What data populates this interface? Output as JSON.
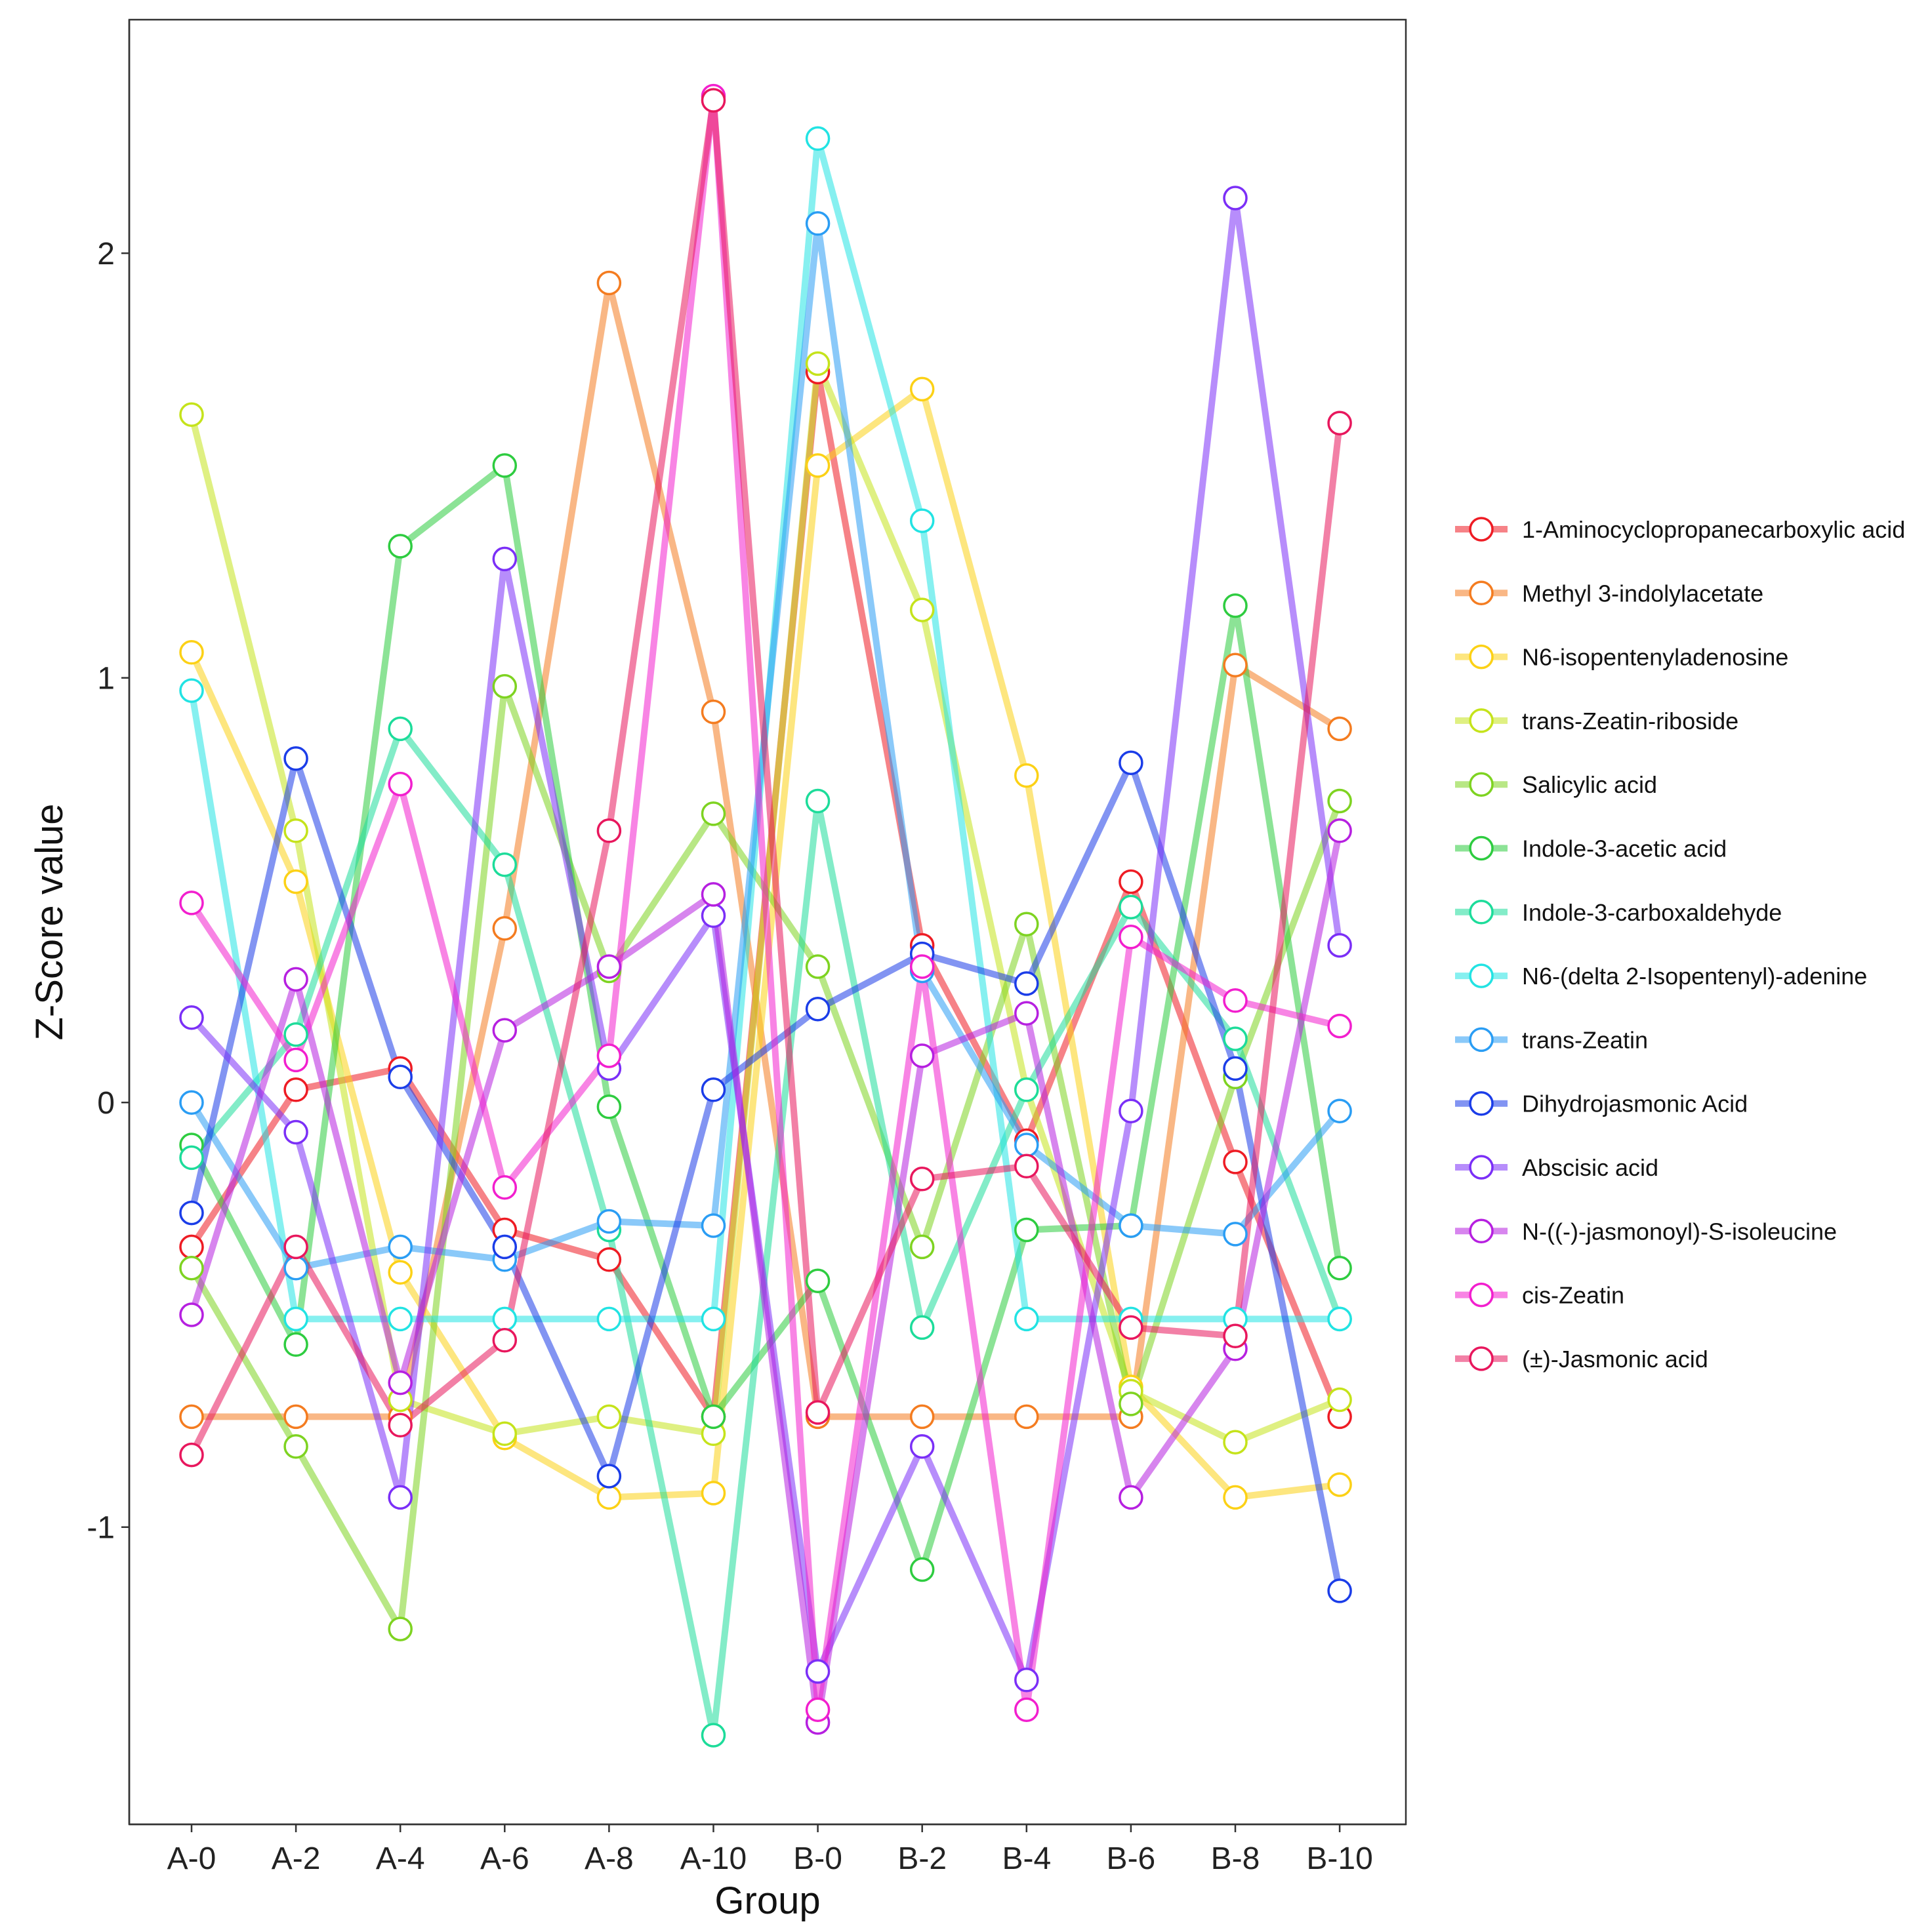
{
  "chart_data": {
    "type": "line",
    "title": "",
    "xlabel": "Group",
    "ylabel": "Z-Score value",
    "ylim": [
      -1.7,
      2.55
    ],
    "yticks": [
      -1,
      0,
      1,
      2
    ],
    "ytick_labels": [
      "-1",
      "0",
      "1",
      "2"
    ],
    "categories": [
      "A-0",
      "A-2",
      "A-4",
      "A-6",
      "A-8",
      "A-10",
      "B-0",
      "B-2",
      "B-4",
      "B-6",
      "B-8",
      "B-10"
    ],
    "legend_position": "right",
    "series": [
      {
        "name": "1-Aminocyclopropanecarboxylic acid",
        "color": "#ee1c24",
        "values": [
          -0.34,
          0.03,
          0.08,
          -0.3,
          -0.37,
          -0.74,
          1.72,
          0.37,
          -0.09,
          0.52,
          -0.14,
          -0.74
        ]
      },
      {
        "name": "Methyl 3-indolylacetate",
        "color": "#f47c20",
        "values": [
          -0.74,
          -0.74,
          -0.74,
          0.41,
          1.93,
          0.92,
          -0.74,
          -0.74,
          -0.74,
          -0.74,
          1.03,
          0.88
        ]
      },
      {
        "name": "N6-isopentenyladenosine",
        "color": "#fcd116",
        "values": [
          1.06,
          0.52,
          -0.4,
          -0.79,
          -0.93,
          -0.92,
          1.5,
          1.68,
          0.77,
          -0.67,
          -0.93,
          -0.9
        ]
      },
      {
        "name": "trans-Zeatin-riboside",
        "color": "#c5e31b",
        "values": [
          1.62,
          0.64,
          -0.7,
          -0.78,
          -0.74,
          -0.78,
          1.74,
          1.16,
          0.03,
          -0.68,
          -0.8,
          -0.7
        ]
      },
      {
        "name": "Salicylic acid",
        "color": "#7ed321",
        "values": [
          -0.39,
          -0.81,
          -1.24,
          0.98,
          0.31,
          0.68,
          0.32,
          -0.34,
          0.42,
          -0.71,
          0.06,
          0.71
        ]
      },
      {
        "name": "Indole-3-acetic acid",
        "color": "#2ecc40",
        "values": [
          -0.1,
          -0.57,
          1.31,
          1.5,
          -0.01,
          -0.74,
          -0.42,
          -1.1,
          -0.3,
          -0.29,
          1.17,
          -0.39
        ]
      },
      {
        "name": "Indole-3-carboxaldehyde",
        "color": "#1ddc9a",
        "values": [
          -0.13,
          0.16,
          0.88,
          0.56,
          -0.3,
          -1.49,
          0.71,
          -0.53,
          0.03,
          0.46,
          0.15,
          -0.51
        ]
      },
      {
        "name": "N6-(delta 2-Isopentenyl)-adenine",
        "color": "#22e3e3",
        "values": [
          0.97,
          -0.51,
          -0.51,
          -0.51,
          -0.51,
          -0.51,
          2.27,
          1.37,
          -0.51,
          -0.51,
          -0.51,
          -0.51
        ]
      },
      {
        "name": " trans-Zeatin",
        "color": "#2a9df4",
        "values": [
          0.0,
          -0.39,
          -0.34,
          -0.37,
          -0.28,
          -0.29,
          2.07,
          0.31,
          -0.1,
          -0.29,
          -0.31,
          -0.02
        ]
      },
      {
        "name": "Dihydrojasmonic Acid",
        "color": "#1b3de8",
        "values": [
          -0.26,
          0.81,
          0.06,
          -0.34,
          -0.88,
          0.03,
          0.22,
          0.35,
          0.28,
          0.8,
          0.08,
          -1.15
        ]
      },
      {
        "name": "Abscisic acid",
        "color": "#7b2ff7",
        "values": [
          0.2,
          -0.07,
          -0.93,
          1.28,
          0.08,
          0.44,
          -1.34,
          -0.81,
          -1.36,
          -0.02,
          2.13,
          0.37
        ]
      },
      {
        "name": "N-((-)-jasmonoyl)-S-isoleucine",
        "color": "#b620e0",
        "values": [
          -0.5,
          0.29,
          -0.66,
          0.17,
          0.32,
          0.49,
          -1.46,
          0.11,
          0.21,
          -0.93,
          -0.58,
          0.64
        ]
      },
      {
        "name": "cis-Zeatin",
        "color": "#f21fce",
        "values": [
          0.47,
          0.1,
          0.75,
          -0.2,
          0.11,
          2.37,
          -1.43,
          0.32,
          -1.43,
          0.39,
          0.24,
          0.18
        ]
      },
      {
        "name": "(±)-Jasmonic acid",
        "color": "#e8175d",
        "values": [
          -0.83,
          -0.34,
          -0.76,
          -0.56,
          0.64,
          2.36,
          -0.73,
          -0.18,
          -0.15,
          -0.53,
          -0.55,
          1.6
        ]
      }
    ]
  }
}
